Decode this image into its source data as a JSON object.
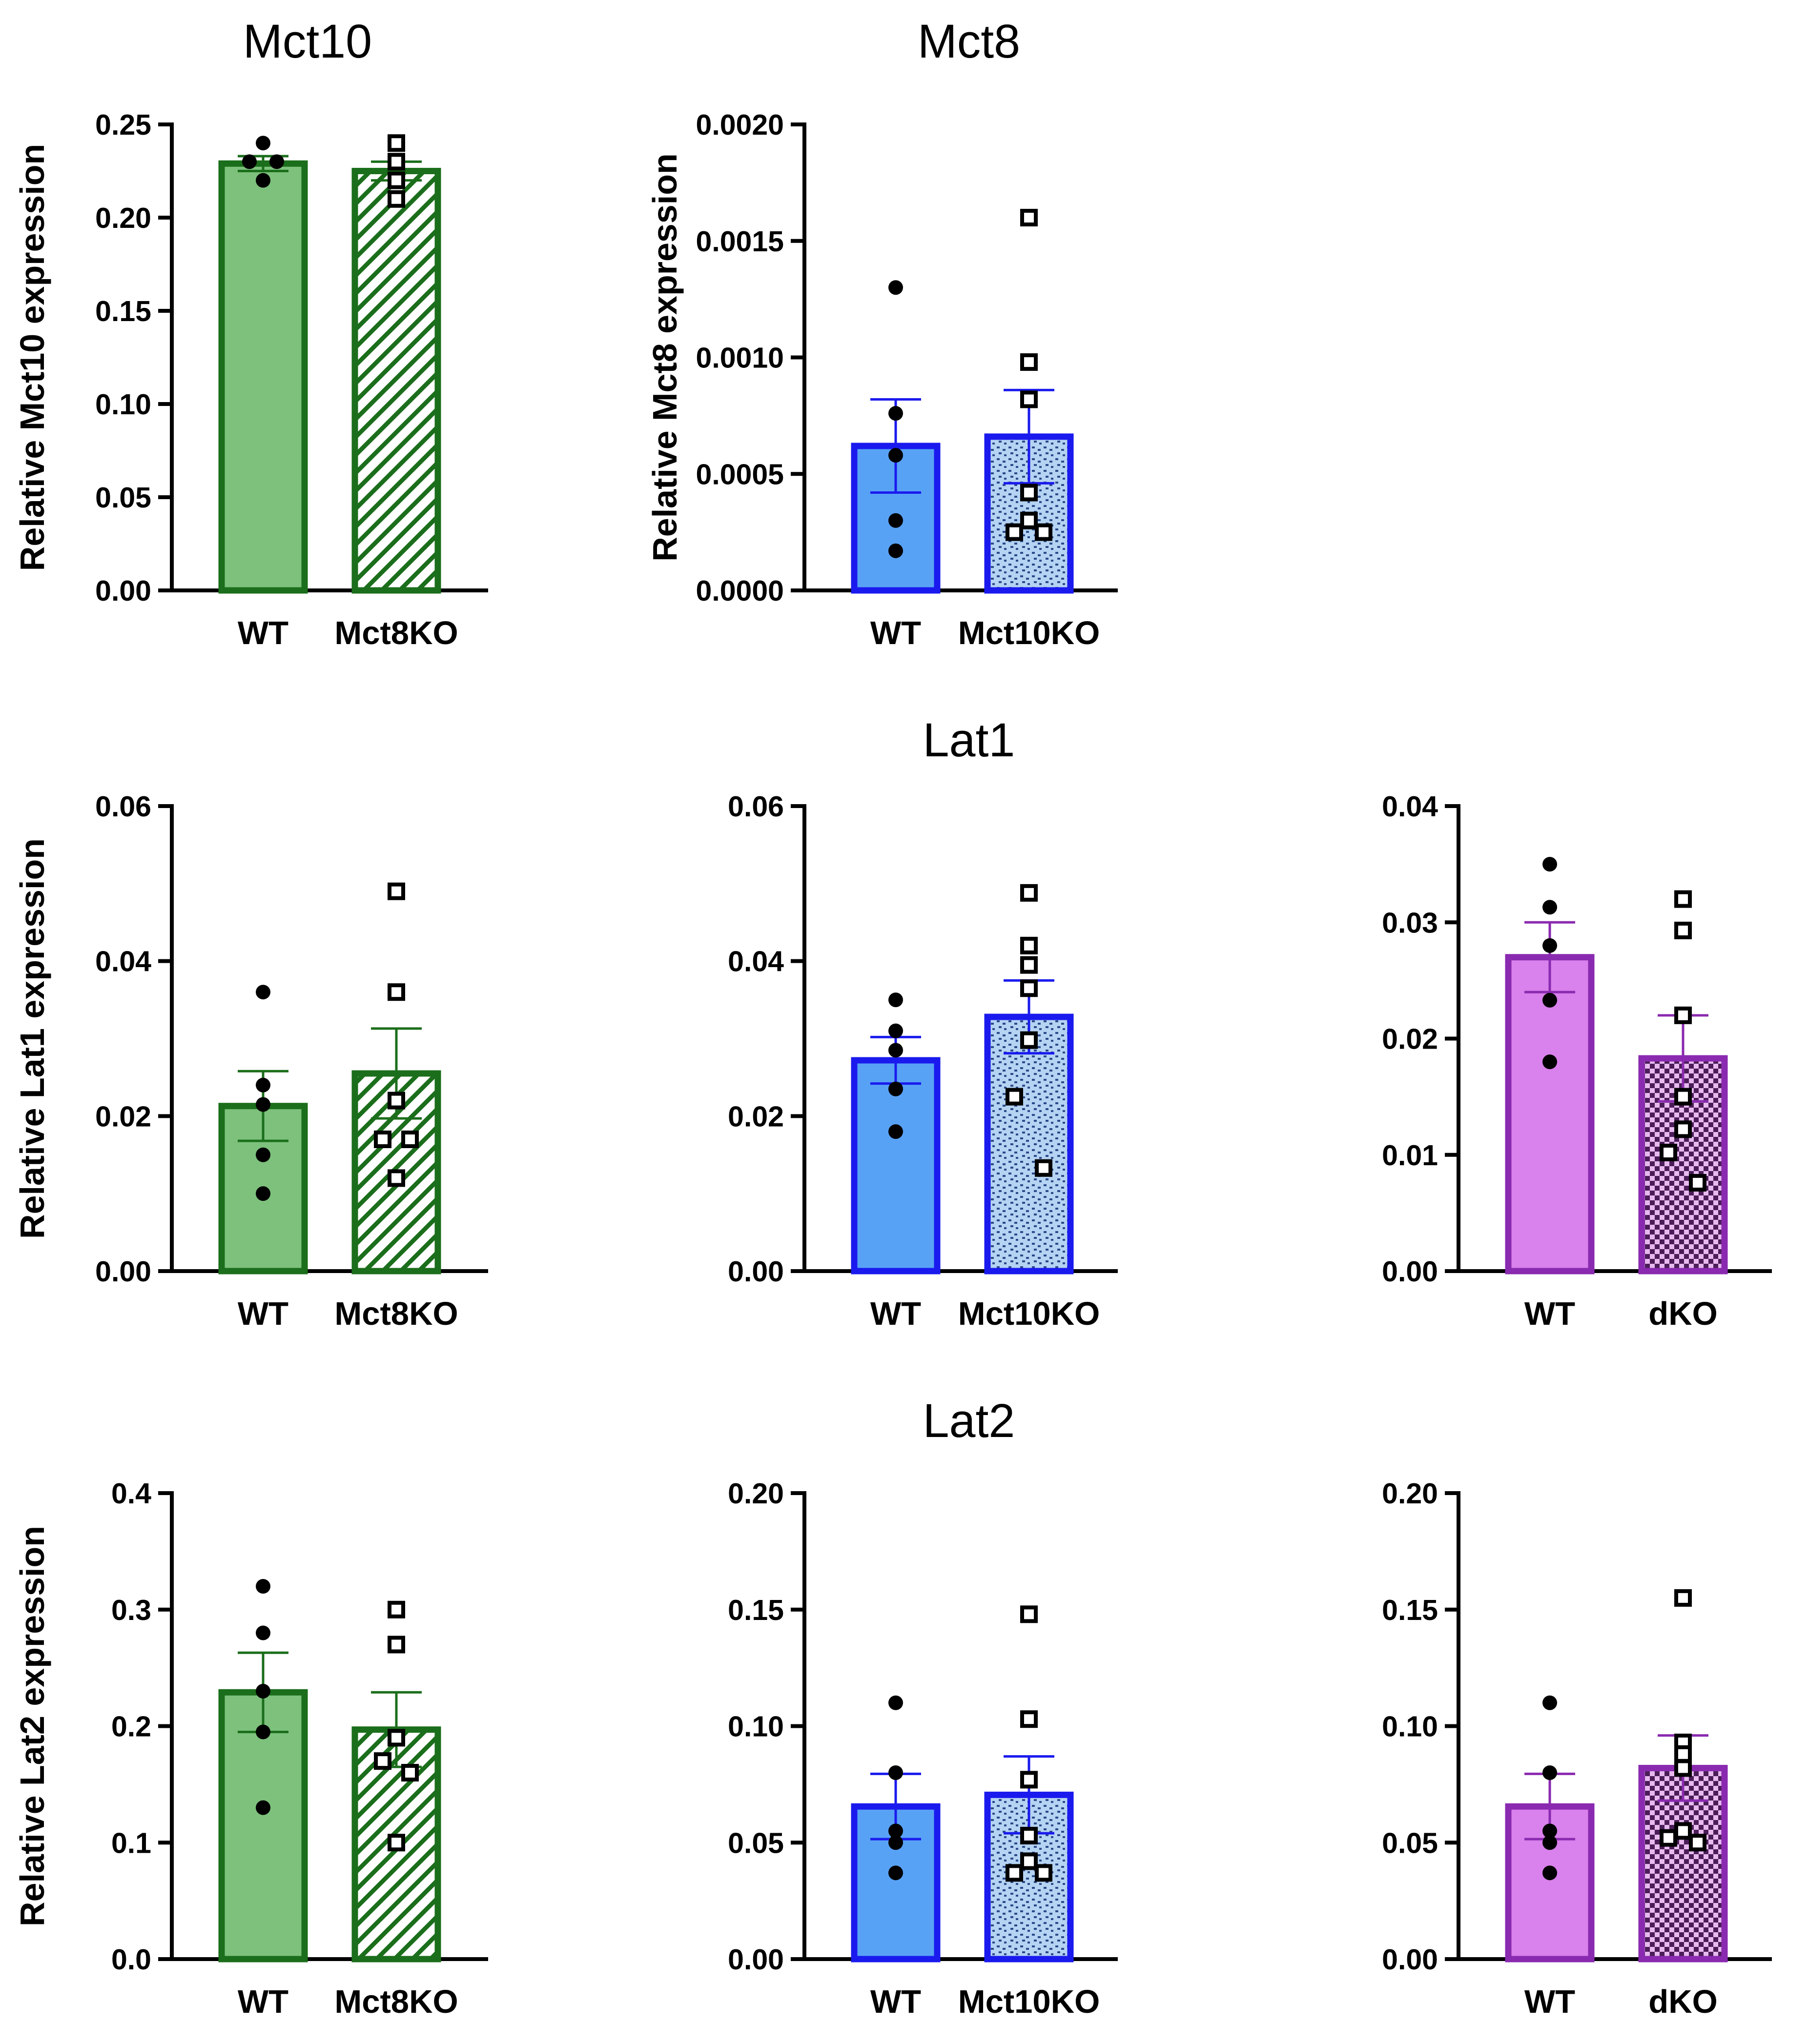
{
  "titles": {
    "mct10": "Mct10",
    "mct8": "Mct8",
    "lat1": "Lat1",
    "lat2": "Lat2"
  },
  "colors": {
    "green_fill": "#7dc17d",
    "green_edge": "#1b6e1b",
    "blue_fill": "#58a2f6",
    "blue_edge": "#1a1aee",
    "blue_ko_fill": "#b5d3f2",
    "purple_fill": "#d981ec",
    "purple_edge": "#8a2ab0",
    "purple_ko_fill": "#8e5598"
  },
  "chart_data": [
    {
      "id": "mct10-mct8ko",
      "type": "bar",
      "title": "Mct10",
      "ylabel": "Relative Mct10 expression",
      "ylim": [
        0,
        0.25
      ],
      "yticks": [
        "0.00",
        "0.05",
        "0.10",
        "0.15",
        "0.20",
        "0.25"
      ],
      "categories": [
        "WT",
        "Mct8KO"
      ],
      "color": "green",
      "ko_pattern": "hatch",
      "values": [
        0.229,
        0.225
      ],
      "sem": [
        0.004,
        0.005
      ],
      "points": [
        [
          0.24,
          0.23,
          0.23,
          0.22
        ],
        [
          0.24,
          0.23,
          0.23,
          0.22,
          0.21
        ]
      ]
    },
    {
      "id": "mct8-mct10ko",
      "type": "bar",
      "title": "Mct8",
      "ylabel": "Relative Mct8 expression",
      "ylim": [
        0,
        0.002
      ],
      "yticks": [
        "0.0000",
        "0.0005",
        "0.0010",
        "0.0015",
        "0.0020"
      ],
      "categories": [
        "WT",
        "Mct10KO"
      ],
      "color": "blue",
      "ko_pattern": "speckle",
      "values": [
        0.00062,
        0.00066
      ],
      "sem": [
        0.0002,
        0.0002
      ],
      "points": [
        [
          0.0013,
          0.00076,
          0.00058,
          0.0003,
          0.00017
        ],
        [
          0.0016,
          0.00098,
          0.00082,
          0.00042,
          0.0003,
          0.00025,
          0.00025
        ]
      ]
    },
    {
      "id": "lat1-mct8ko",
      "type": "bar",
      "title": "",
      "ylabel": "Relative Lat1 expression",
      "ylim": [
        0,
        0.06
      ],
      "yticks": [
        "0.00",
        "0.02",
        "0.04",
        "0.06"
      ],
      "categories": [
        "WT",
        "Mct8KO"
      ],
      "color": "green",
      "ko_pattern": "hatch",
      "values": [
        0.0213,
        0.0255
      ],
      "sem": [
        0.0045,
        0.0058
      ],
      "points": [
        [
          0.036,
          0.024,
          0.0215,
          0.015,
          0.01
        ],
        [
          0.049,
          0.036,
          0.022,
          0.017,
          0.017,
          0.012
        ]
      ]
    },
    {
      "id": "lat1-mct10ko",
      "type": "bar",
      "title": "Lat1",
      "ylabel": "",
      "ylim": [
        0,
        0.06
      ],
      "yticks": [
        "0.00",
        "0.02",
        "0.04",
        "0.06"
      ],
      "categories": [
        "WT",
        "Mct10KO"
      ],
      "color": "blue",
      "ko_pattern": "speckle",
      "values": [
        0.0272,
        0.0328
      ],
      "sem": [
        0.003,
        0.0047
      ],
      "points": [
        [
          0.035,
          0.031,
          0.0285,
          0.0235,
          0.018
        ],
        [
          0.0488,
          0.042,
          0.0395,
          0.0365,
          0.0298,
          0.0225,
          0.0133
        ]
      ]
    },
    {
      "id": "lat1-dko",
      "type": "bar",
      "title": "",
      "ylabel": "",
      "ylim": [
        0,
        0.04
      ],
      "yticks": [
        "0.00",
        "0.01",
        "0.02",
        "0.03",
        "0.04"
      ],
      "categories": [
        "WT",
        "dKO"
      ],
      "color": "purple",
      "ko_pattern": "checker",
      "values": [
        0.027,
        0.0183
      ],
      "sem": [
        0.003,
        0.0037
      ],
      "points": [
        [
          0.035,
          0.0313,
          0.028,
          0.0233,
          0.018
        ],
        [
          0.032,
          0.0293,
          0.022,
          0.015,
          0.0122,
          0.0102,
          0.0076
        ]
      ]
    },
    {
      "id": "lat2-mct8ko",
      "type": "bar",
      "title": "",
      "ylabel": "Relative Lat2 expression",
      "ylim": [
        0,
        0.4
      ],
      "yticks": [
        "0.0",
        "0.1",
        "0.2",
        "0.3",
        "0.4"
      ],
      "categories": [
        "WT",
        "Mct8KO"
      ],
      "color": "green",
      "ko_pattern": "hatch",
      "values": [
        0.229,
        0.197
      ],
      "sem": [
        0.034,
        0.032
      ],
      "points": [
        [
          0.32,
          0.28,
          0.23,
          0.195,
          0.13
        ],
        [
          0.3,
          0.27,
          0.19,
          0.17,
          0.16,
          0.1
        ]
      ]
    },
    {
      "id": "lat2-mct10ko",
      "type": "bar",
      "title": "Lat2",
      "ylabel": "",
      "ylim": [
        0,
        0.2
      ],
      "yticks": [
        "0.00",
        "0.05",
        "0.10",
        "0.15",
        "0.20"
      ],
      "categories": [
        "WT",
        "Mct10KO"
      ],
      "color": "blue",
      "ko_pattern": "speckle",
      "values": [
        0.0655,
        0.0705
      ],
      "sem": [
        0.014,
        0.0165
      ],
      "points": [
        [
          0.11,
          0.08,
          0.055,
          0.05,
          0.037
        ],
        [
          0.148,
          0.103,
          0.077,
          0.053,
          0.042,
          0.037,
          0.037
        ]
      ]
    },
    {
      "id": "lat2-dko",
      "type": "bar",
      "title": "",
      "ylabel": "",
      "ylim": [
        0,
        0.2
      ],
      "yticks": [
        "0.00",
        "0.05",
        "0.10",
        "0.15",
        "0.20"
      ],
      "categories": [
        "WT",
        "dKO"
      ],
      "color": "purple",
      "ko_pattern": "checker",
      "values": [
        0.0655,
        0.082
      ],
      "sem": [
        0.014,
        0.014
      ],
      "points": [
        [
          0.11,
          0.08,
          0.055,
          0.05,
          0.037
        ],
        [
          0.155,
          0.093,
          0.088,
          0.082,
          0.055,
          0.052,
          0.05
        ]
      ]
    }
  ]
}
